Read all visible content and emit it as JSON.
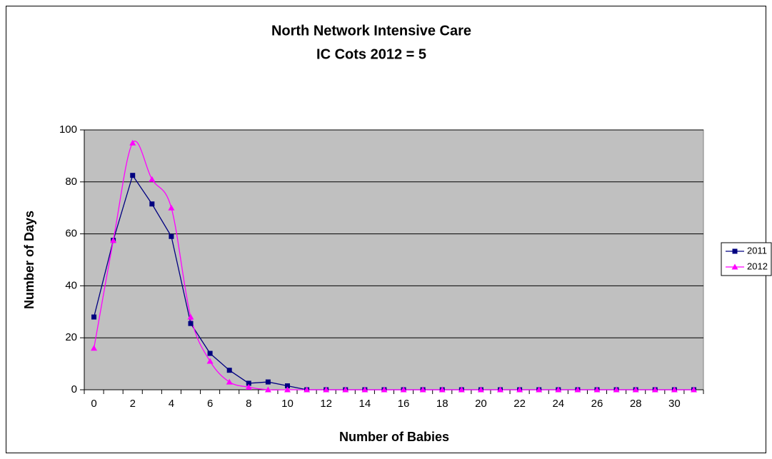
{
  "chart_data": {
    "type": "line",
    "title": [
      "North Network Intensive Care",
      "IC Cots 2012 = 5"
    ],
    "x_label": "Number of Babies",
    "y_label": "Number of Days",
    "categories": [
      0,
      null,
      2,
      null,
      4,
      null,
      6,
      null,
      8,
      null,
      10,
      null,
      12,
      null,
      14,
      null,
      16,
      null,
      18,
      null,
      20,
      null,
      22,
      null,
      24,
      null,
      26,
      null,
      28,
      null,
      30,
      null
    ],
    "series": [
      {
        "name": "2011",
        "color": "#000080",
        "marker": "square",
        "smooth": false,
        "values": [
          28,
          57.5,
          82.5,
          71.5,
          59,
          25.5,
          14,
          7.5,
          2.5,
          3,
          1.5,
          0,
          0,
          0,
          0,
          0,
          0,
          0,
          0,
          0,
          0,
          0,
          0,
          0,
          0,
          0,
          0,
          0,
          0,
          0,
          0,
          0
        ]
      },
      {
        "name": "2012",
        "color": "#ff00ff",
        "marker": "triangle",
        "smooth": true,
        "values": [
          16,
          57.5,
          95,
          81,
          70,
          28,
          11,
          3,
          1,
          0,
          0,
          0,
          0,
          0,
          0,
          0,
          0,
          0,
          0,
          0,
          0,
          0,
          0,
          0,
          0,
          0,
          0,
          0,
          0,
          0,
          0,
          0
        ]
      }
    ],
    "ylim": [
      0,
      100
    ],
    "yticks": [
      0,
      20,
      40,
      60,
      80,
      100
    ],
    "grid": true,
    "plot_background": "#c0c0c0",
    "legend": "right"
  }
}
